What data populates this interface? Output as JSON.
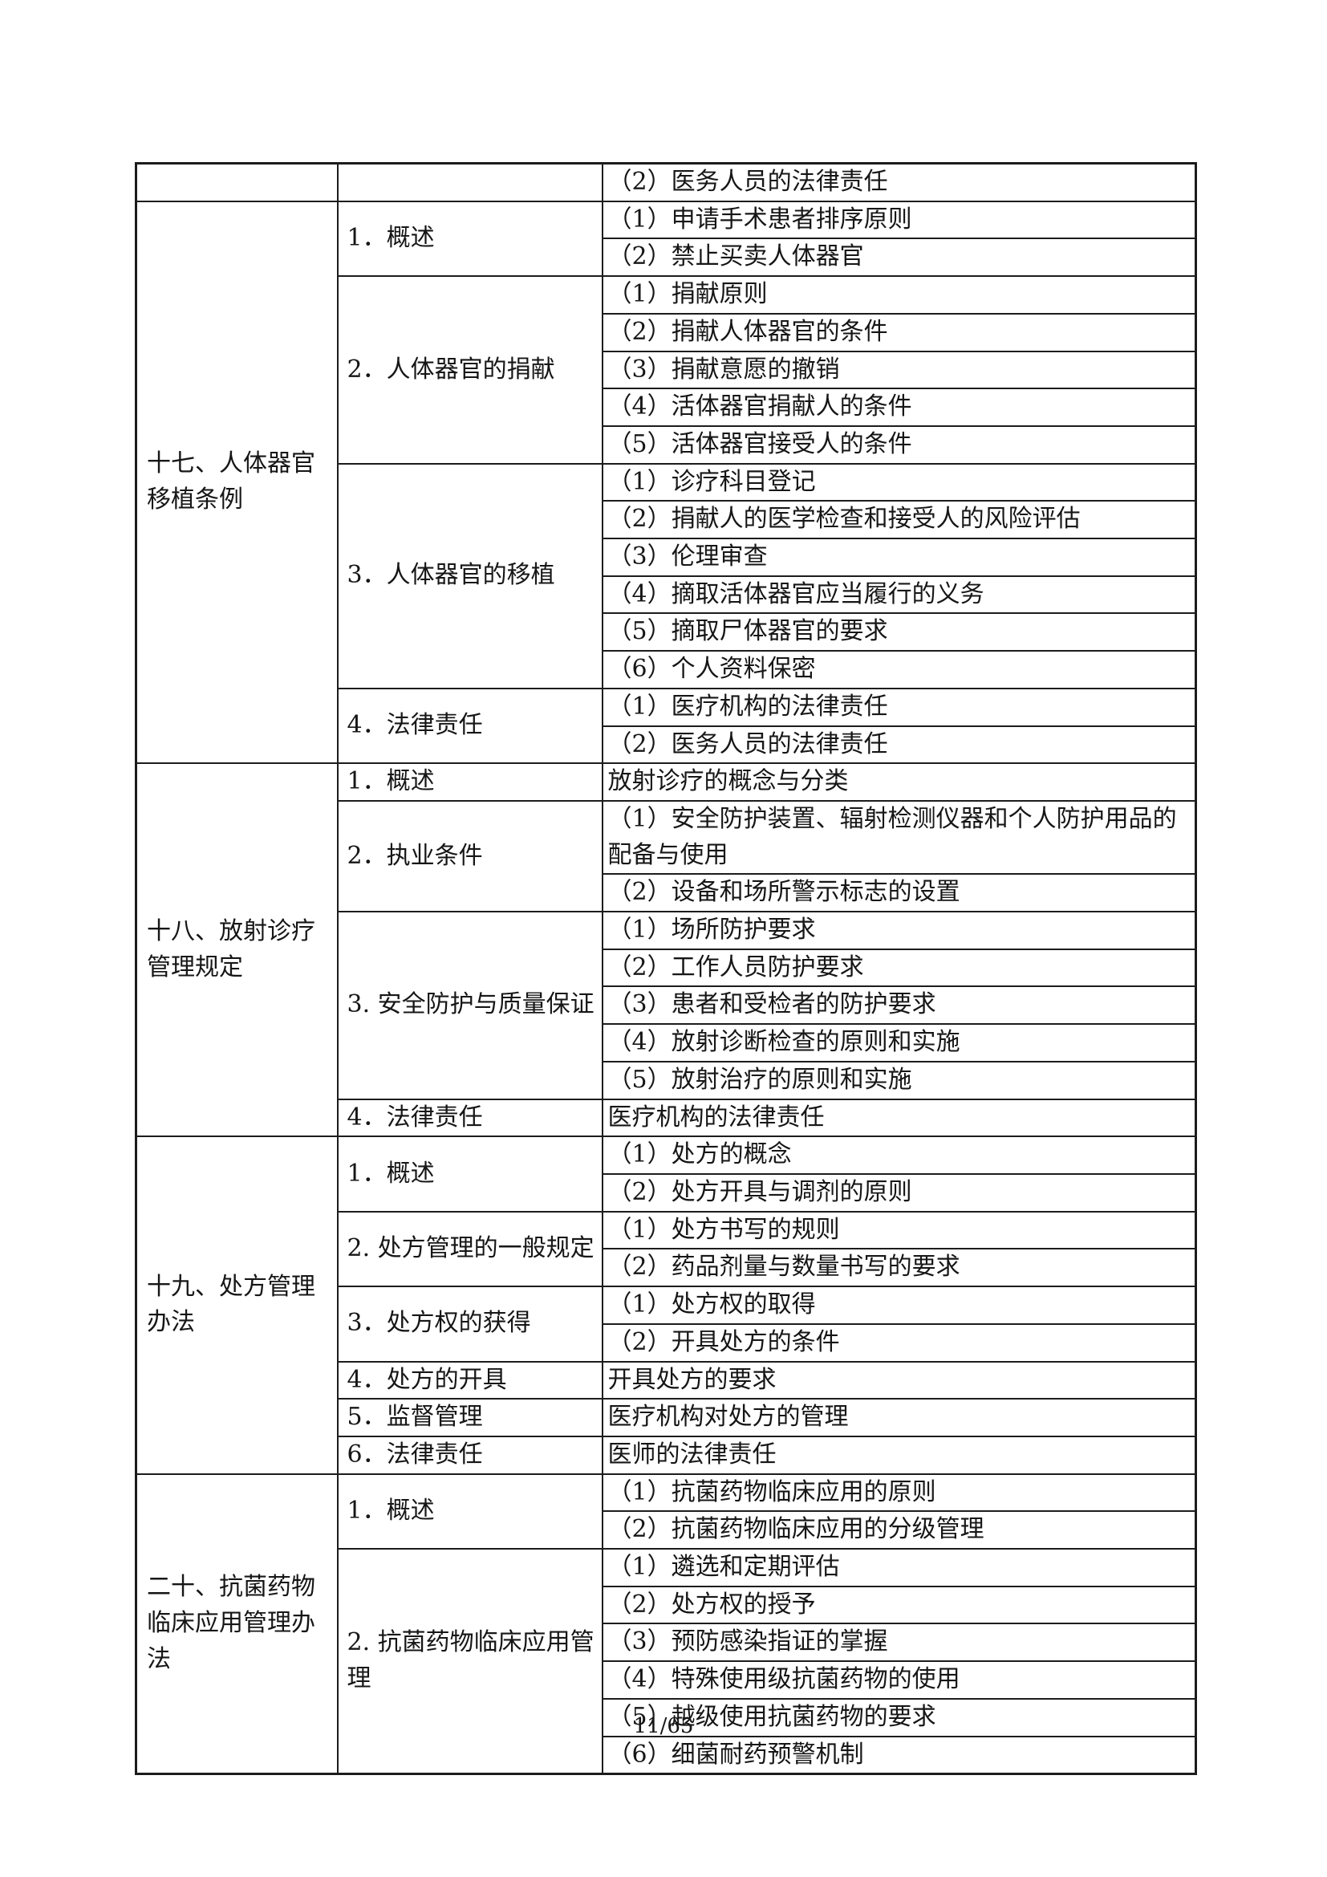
{
  "page": {
    "footer": "11/65"
  },
  "colors": {
    "border": "#1c1c1c",
    "text": "#161616",
    "background": "#ffffff"
  },
  "table": {
    "continuation_row": {
      "item": "（2）医务人员的法律责任"
    },
    "sections": [
      {
        "title": "十七、人体器官移植条例",
        "groups": [
          {
            "label": "1．概述",
            "items": [
              "（1）申请手术患者排序原则",
              "（2）禁止买卖人体器官"
            ]
          },
          {
            "label": "2．人体器官的捐献",
            "items": [
              "（1）捐献原则",
              "（2）捐献人体器官的条件",
              "（3）捐献意愿的撤销",
              "（4）活体器官捐献人的条件",
              "（5）活体器官接受人的条件"
            ]
          },
          {
            "label": "3．人体器官的移植",
            "items": [
              "（1）诊疗科目登记",
              "（2）捐献人的医学检查和接受人的风险评估",
              "（3）伦理审查",
              "（4）摘取活体器官应当履行的义务",
              "（5）摘取尸体器官的要求",
              "（6）个人资料保密"
            ]
          },
          {
            "label": "4．法律责任",
            "items": [
              "（1）医疗机构的法律责任",
              "（2）医务人员的法律责任"
            ]
          }
        ]
      },
      {
        "title": "十八、放射诊疗管理规定",
        "groups": [
          {
            "label": "1．概述",
            "items": [
              "放射诊疗的概念与分类"
            ]
          },
          {
            "label": "2．执业条件",
            "items": [
              "（1）安全防护装置、辐射检测仪器和个人防护用品的配备与使用",
              "（2）设备和场所警示标志的设置"
            ]
          },
          {
            "label": "3. 安全防护与质量保证",
            "items": [
              "（1）场所防护要求",
              "（2）工作人员防护要求",
              "（3）患者和受检者的防护要求",
              "（4）放射诊断检查的原则和实施",
              "（5）放射治疗的原则和实施"
            ]
          },
          {
            "label": "4．法律责任",
            "items": [
              "医疗机构的法律责任"
            ]
          }
        ]
      },
      {
        "title": "十九、处方管理办法",
        "groups": [
          {
            "label": "1．概述",
            "items": [
              "（1）处方的概念",
              "（2）处方开具与调剂的原则"
            ]
          },
          {
            "label": "2. 处方管理的一般规定",
            "items": [
              "（1）处方书写的规则",
              "（2）药品剂量与数量书写的要求"
            ]
          },
          {
            "label": "3．处方权的获得",
            "items": [
              "（1）处方权的取得",
              "（2）开具处方的条件"
            ]
          },
          {
            "label": "4．处方的开具",
            "items": [
              "开具处方的要求"
            ]
          },
          {
            "label": "5．监督管理",
            "items": [
              "医疗机构对处方的管理"
            ]
          },
          {
            "label": "6．法律责任",
            "items": [
              "医师的法律责任"
            ]
          }
        ]
      },
      {
        "title": "二十、抗菌药物临床应用管理办法",
        "groups": [
          {
            "label": "1．概述",
            "items": [
              "（1）抗菌药物临床应用的原则",
              "（2）抗菌药物临床应用的分级管理"
            ]
          },
          {
            "label": "2. 抗菌药物临床应用管理",
            "items": [
              "（1）遴选和定期评估",
              "（2）处方权的授予",
              "（3）预防感染指证的掌握",
              "（4）特殊使用级抗菌药物的使用",
              "（5）越级使用抗菌药物的要求",
              "（6）细菌耐药预警机制"
            ]
          }
        ]
      }
    ]
  }
}
